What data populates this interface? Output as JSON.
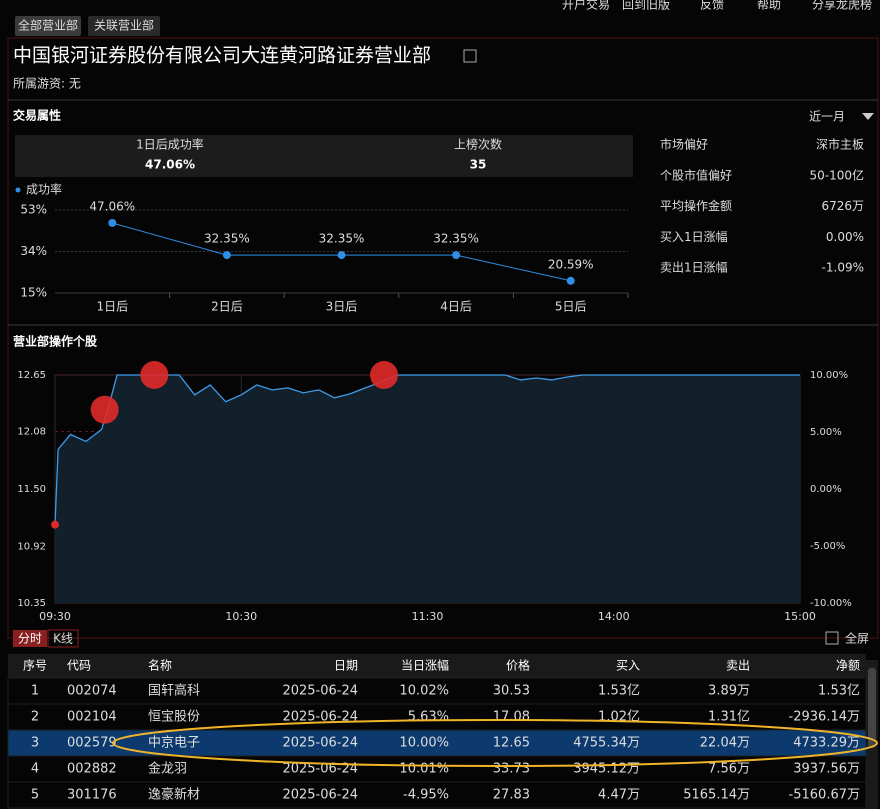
{
  "top_nav": [
    "开户交易",
    "回到旧版",
    "反馈",
    "帮助",
    "分享龙虎榜"
  ],
  "tabs": [
    "全部营业部",
    "关联营业部"
  ],
  "header": {
    "title": "中国银河证券股份有限公司大连黄河路证券营业部",
    "subtitle": "所属游资: 无"
  },
  "trade_attributes": {
    "title": "交易属性",
    "period": "近一月",
    "stats": [
      {
        "label": "1日后成功率",
        "value": "47.06%"
      },
      {
        "label": "上榜次数",
        "value": "35"
      }
    ],
    "success_chart": {
      "type": "line",
      "legend": "成功率",
      "color": "#2f8ee6",
      "categories": [
        "1日后",
        "2日后",
        "3日后",
        "4日后",
        "5日后"
      ],
      "values": [
        47.06,
        32.35,
        32.35,
        32.35,
        20.59
      ],
      "value_labels": [
        "47.06%",
        "32.35%",
        "32.35%",
        "32.35%",
        "20.59%"
      ],
      "ylim": [
        15,
        53
      ],
      "yticks": [
        {
          "value": 53,
          "label": "53%"
        },
        {
          "value": 34,
          "label": "34%"
        },
        {
          "value": 15,
          "label": "15%"
        }
      ]
    },
    "preferences": [
      {
        "label": "市场偏好",
        "value": "深市主板"
      },
      {
        "label": "个股市值偏好",
        "value": "50-100亿"
      },
      {
        "label": "平均操作金额",
        "value": "6726万"
      },
      {
        "label": "买入1日涨幅",
        "value": "0.00%"
      },
      {
        "label": "卖出1日涨幅",
        "value": "-1.09%"
      }
    ]
  },
  "stock_chart": {
    "title": "营业部操作个股",
    "type": "line",
    "color": "#3d9be9",
    "times": [
      "09:30",
      "09:31",
      "09:35",
      "09:40",
      "09:45",
      "09:47",
      "09:50",
      "09:55",
      "10:00",
      "10:05",
      "10:10",
      "10:15",
      "10:20",
      "10:25",
      "10:30",
      "10:35",
      "10:40",
      "10:45",
      "10:50",
      "10:55",
      "11:00",
      "11:05",
      "11:10",
      "11:15",
      "11:20",
      "11:25",
      "11:30",
      "13:05",
      "13:10",
      "13:15",
      "13:20",
      "13:25",
      "13:30",
      "13:35",
      "13:40",
      "13:45",
      "13:50",
      "13:55",
      "14:00",
      "14:10",
      "14:20",
      "14:30",
      "14:40",
      "14:50",
      "15:00"
    ],
    "values": [
      11.14,
      11.9,
      12.05,
      11.98,
      12.1,
      12.3,
      12.65,
      12.65,
      12.65,
      12.65,
      12.65,
      12.45,
      12.55,
      12.38,
      12.45,
      12.55,
      12.5,
      12.52,
      12.47,
      12.5,
      12.42,
      12.46,
      12.52,
      12.58,
      12.65,
      12.65,
      12.65,
      12.65,
      12.65,
      12.65,
      12.65,
      12.65,
      12.6,
      12.62,
      12.6,
      12.63,
      12.65,
      12.65,
      12.65,
      12.65,
      12.65,
      12.65,
      12.65,
      12.65,
      12.65
    ],
    "ylim": [
      10.35,
      12.65
    ],
    "yticks": [
      12.65,
      12.08,
      {
        "value": 11.5,
        "label": "11.50"
      },
      10.92,
      10.35
    ],
    "y2lim": [
      -10,
      10
    ],
    "y2ticks": [
      {
        "value": 10,
        "label": "10.00%"
      },
      {
        "value": 5,
        "label": "5.00%"
      },
      {
        "value": 0,
        "label": "0.00%"
      },
      {
        "value": -5,
        "label": "-5.00%"
      },
      {
        "value": -10,
        "label": "-10.00%"
      }
    ],
    "xticks": [
      "09:30",
      "10:30",
      "11:30",
      "14:00",
      "15:00"
    ],
    "markers": {
      "color": "#e02a2a",
      "times": [
        "09:46",
        "10:02",
        "11:16"
      ],
      "values": [
        12.3,
        12.65,
        12.65
      ]
    },
    "tabs": [
      "分时",
      "K线"
    ],
    "fullscreen": "全屏"
  },
  "table": {
    "columns": [
      "序号",
      "代码",
      "名称",
      "日期",
      "当日涨幅",
      "价格",
      "买入",
      "卖出",
      "净额"
    ],
    "rows": [
      [
        "1",
        "002074",
        "国轩高科",
        "2025-06-24",
        "10.02%",
        "30.53",
        "1.53亿",
        "3.89万",
        "1.53亿"
      ],
      [
        "2",
        "002104",
        "恒宝股份",
        "2025-06-24",
        "5.63%",
        "17.08",
        "1.02亿",
        "1.31亿",
        "-2936.14万"
      ],
      [
        "3",
        "002579",
        "中京电子",
        "2025-06-24",
        "10.00%",
        "12.65",
        "4755.34万",
        "22.04万",
        "4733.29万"
      ],
      [
        "4",
        "002882",
        "金龙羽",
        "2025-06-24",
        "10.01%",
        "33.73",
        "3945.12万",
        "7.56万",
        "3937.56万"
      ],
      [
        "5",
        "301176",
        "逸豪新材",
        "2025-06-24",
        "-4.95%",
        "27.83",
        "4.47万",
        "5165.14万",
        "-5160.67万"
      ]
    ]
  }
}
